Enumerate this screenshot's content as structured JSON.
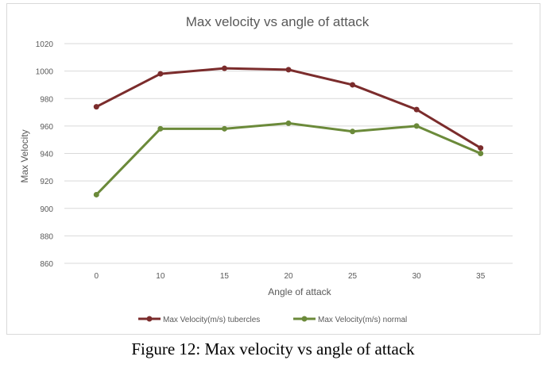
{
  "colors": {
    "tubercles": "#7b2c2c",
    "normal": "#6b8a3a",
    "grid": "#d9d9d9",
    "text": "#595959"
  },
  "caption": "Figure 12: Max velocity vs angle of attack",
  "chart_data": {
    "type": "line",
    "title": "Max velocity vs angle of attack",
    "xlabel": "Angle of attack",
    "ylabel": "Max Velocity",
    "categories": [
      "0",
      "10",
      "15",
      "20",
      "25",
      "30",
      "35"
    ],
    "ylim": [
      860,
      1020
    ],
    "yticks": [
      860,
      880,
      900,
      920,
      940,
      960,
      980,
      1000,
      1020
    ],
    "grid": true,
    "legend_position": "bottom",
    "series": [
      {
        "name": "Max Velocity(m/s) tubercles",
        "color": "#7b2c2c",
        "values": [
          974,
          998,
          1002,
          1001,
          990,
          972,
          944
        ]
      },
      {
        "name": "Max Velocity(m/s) normal",
        "color": "#6b8a3a",
        "values": [
          910,
          958,
          958,
          962,
          956,
          960,
          940
        ]
      }
    ]
  }
}
